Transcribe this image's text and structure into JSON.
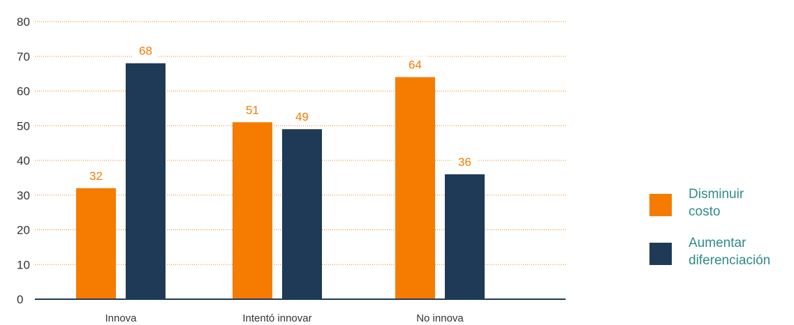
{
  "chart_data": {
    "type": "bar",
    "categories": [
      "Innova",
      "Intentó innovar",
      "No innova"
    ],
    "series": [
      {
        "name": "Disminuir costo",
        "values": [
          32,
          51,
          64
        ],
        "color": "#f57c00"
      },
      {
        "name": "Aumentar diferenciación",
        "values": [
          68,
          49,
          36
        ],
        "color": "#1e3a56"
      }
    ],
    "ylim": [
      0,
      80
    ],
    "yticks": [
      0,
      10,
      20,
      30,
      40,
      50,
      60,
      70,
      80
    ],
    "grid": true,
    "grid_color": "#f57c00",
    "legend_position": "right",
    "label_color": "#f57c00",
    "legend_text_color": "#2e8b8b"
  },
  "legend": {
    "item1": {
      "line1": "Disminuir",
      "line2": "costo"
    },
    "item2": {
      "line1": "Aumentar",
      "line2": "diferenciación"
    }
  }
}
